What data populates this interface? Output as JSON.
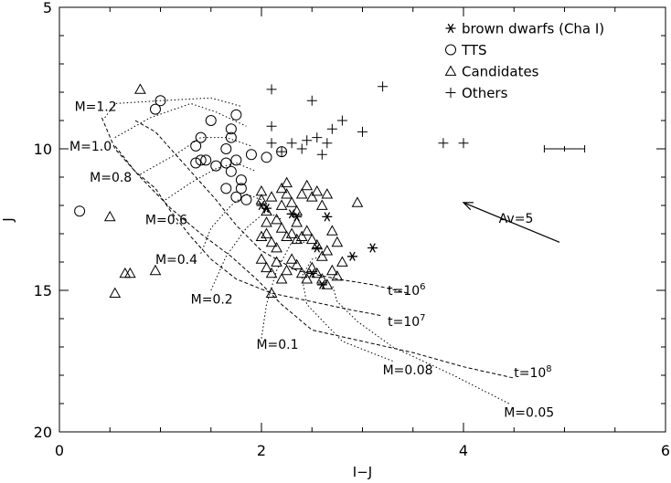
{
  "chart_data": {
    "type": "scatter",
    "xlabel": "I−J",
    "ylabel": "J",
    "xlim": [
      0,
      6
    ],
    "ylim": [
      20,
      5
    ],
    "y_inverted": true,
    "x_ticks": [
      "0",
      "2",
      "4",
      "6"
    ],
    "y_ticks": [
      "5",
      "10",
      "15",
      "20"
    ],
    "legend_position": "top-right",
    "series": [
      {
        "name": "brown dwarfs (Cha I)",
        "marker": "asterisk",
        "points": [
          [
            2.0,
            12.0
          ],
          [
            2.3,
            12.3
          ],
          [
            2.35,
            12.4
          ],
          [
            2.55,
            13.5
          ],
          [
            2.65,
            12.4
          ],
          [
            2.9,
            13.8
          ],
          [
            3.1,
            13.5
          ],
          [
            2.5,
            14.4
          ],
          [
            2.6,
            14.8
          ],
          [
            2.05,
            12.1
          ]
        ]
      },
      {
        "name": "TTS",
        "marker": "circle",
        "points": [
          [
            0.2,
            12.2
          ],
          [
            0.95,
            8.6
          ],
          [
            1.0,
            8.3
          ],
          [
            1.5,
            9.0
          ],
          [
            1.35,
            9.9
          ],
          [
            1.4,
            9.6
          ],
          [
            1.7,
            9.3
          ],
          [
            1.7,
            9.6
          ],
          [
            1.75,
            8.8
          ],
          [
            1.65,
            10.0
          ],
          [
            1.35,
            10.5
          ],
          [
            1.4,
            10.4
          ],
          [
            1.45,
            10.4
          ],
          [
            1.55,
            10.6
          ],
          [
            1.65,
            10.5
          ],
          [
            1.75,
            10.4
          ],
          [
            1.9,
            10.2
          ],
          [
            1.7,
            10.8
          ],
          [
            1.8,
            11.1
          ],
          [
            1.8,
            11.4
          ],
          [
            1.75,
            11.7
          ],
          [
            1.65,
            11.4
          ],
          [
            1.85,
            11.8
          ],
          [
            2.05,
            10.3
          ],
          [
            2.2,
            10.1
          ]
        ]
      },
      {
        "name": "Candidates",
        "marker": "triangle",
        "points": [
          [
            0.8,
            7.9
          ],
          [
            0.5,
            12.4
          ],
          [
            0.55,
            15.1
          ],
          [
            0.65,
            14.4
          ],
          [
            0.7,
            14.4
          ],
          [
            0.95,
            14.3
          ],
          [
            2.0,
            11.5
          ],
          [
            2.0,
            11.8
          ],
          [
            2.05,
            12.2
          ],
          [
            2.1,
            11.7
          ],
          [
            2.15,
            12.5
          ],
          [
            2.2,
            11.4
          ],
          [
            2.25,
            11.2
          ],
          [
            2.25,
            11.6
          ],
          [
            2.3,
            11.9
          ],
          [
            2.35,
            12.2
          ],
          [
            2.4,
            11.6
          ],
          [
            2.45,
            11.3
          ],
          [
            2.5,
            11.7
          ],
          [
            2.55,
            11.5
          ],
          [
            2.6,
            12.0
          ],
          [
            2.65,
            11.6
          ],
          [
            2.7,
            12.9
          ],
          [
            2.75,
            13.3
          ],
          [
            2.0,
            13.1
          ],
          [
            2.05,
            13.0
          ],
          [
            2.1,
            13.3
          ],
          [
            2.15,
            13.5
          ],
          [
            2.2,
            12.8
          ],
          [
            2.25,
            13.1
          ],
          [
            2.3,
            13.0
          ],
          [
            2.35,
            13.2
          ],
          [
            2.4,
            13.1
          ],
          [
            2.45,
            12.9
          ],
          [
            2.5,
            13.2
          ],
          [
            2.55,
            13.4
          ],
          [
            2.6,
            13.8
          ],
          [
            2.65,
            13.6
          ],
          [
            2.0,
            13.9
          ],
          [
            2.05,
            14.2
          ],
          [
            2.1,
            14.4
          ],
          [
            2.15,
            14.0
          ],
          [
            2.2,
            14.6
          ],
          [
            2.25,
            14.3
          ],
          [
            2.3,
            13.9
          ],
          [
            2.35,
            14.1
          ],
          [
            2.4,
            14.4
          ],
          [
            2.45,
            14.6
          ],
          [
            2.5,
            14.2
          ],
          [
            2.55,
            14.4
          ],
          [
            2.6,
            14.6
          ],
          [
            2.65,
            14.8
          ],
          [
            2.7,
            14.3
          ],
          [
            2.75,
            14.5
          ],
          [
            2.8,
            14.0
          ],
          [
            2.1,
            15.1
          ],
          [
            2.95,
            11.9
          ],
          [
            2.05,
            12.6
          ],
          [
            2.2,
            12.0
          ],
          [
            2.35,
            12.6
          ]
        ]
      },
      {
        "name": "Others",
        "marker": "plus",
        "points": [
          [
            2.1,
            7.9
          ],
          [
            3.2,
            7.8
          ],
          [
            2.5,
            8.3
          ],
          [
            2.1,
            9.2
          ],
          [
            2.7,
            9.3
          ],
          [
            2.8,
            9.0
          ],
          [
            3.0,
            9.4
          ],
          [
            2.1,
            9.8
          ],
          [
            2.3,
            9.8
          ],
          [
            2.45,
            9.7
          ],
          [
            2.55,
            9.6
          ],
          [
            2.65,
            9.8
          ],
          [
            2.4,
            10.0
          ],
          [
            2.2,
            10.1
          ],
          [
            2.6,
            10.2
          ],
          [
            3.8,
            9.8
          ],
          [
            4.0,
            9.8
          ]
        ]
      }
    ],
    "mass_labels": [
      {
        "text": "M=1.2",
        "x": 0.15,
        "y": 8.5
      },
      {
        "text": "M=1.0",
        "x": 0.1,
        "y": 9.9
      },
      {
        "text": "M=0.8",
        "x": 0.3,
        "y": 11.0
      },
      {
        "text": "M=0.6",
        "x": 0.85,
        "y": 12.5
      },
      {
        "text": "M=0.4",
        "x": 0.95,
        "y": 13.9
      },
      {
        "text": "M=0.2",
        "x": 1.3,
        "y": 15.3
      },
      {
        "text": "M=0.1",
        "x": 1.95,
        "y": 16.9
      },
      {
        "text": "M=0.08",
        "x": 3.2,
        "y": 17.8
      },
      {
        "text": "M=0.05",
        "x": 4.4,
        "y": 19.3
      }
    ],
    "isochrone_labels": [
      {
        "text": "t=10",
        "sup": "6",
        "x": 3.25,
        "y": 15.0
      },
      {
        "text": "t=10",
        "sup": "7",
        "x": 3.25,
        "y": 16.1
      },
      {
        "text": "t=10",
        "sup": "8",
        "x": 4.5,
        "y": 17.9
      }
    ],
    "isochrones": [
      {
        "t": "10^6",
        "points": [
          [
            0.75,
            9.0
          ],
          [
            0.95,
            9.4
          ],
          [
            1.1,
            10.0
          ],
          [
            1.3,
            10.8
          ],
          [
            1.55,
            11.8
          ],
          [
            1.75,
            12.7
          ],
          [
            2.0,
            13.6
          ],
          [
            2.35,
            14.3
          ],
          [
            2.75,
            14.6
          ],
          [
            3.1,
            14.8
          ],
          [
            3.45,
            15.1
          ]
        ]
      },
      {
        "t": "10^7",
        "points": [
          [
            0.55,
            9.9
          ],
          [
            0.75,
            10.8
          ],
          [
            0.95,
            11.4
          ],
          [
            1.1,
            12.2
          ],
          [
            1.3,
            13.1
          ],
          [
            1.5,
            13.9
          ],
          [
            1.75,
            14.6
          ],
          [
            2.1,
            15.1
          ],
          [
            2.5,
            15.4
          ],
          [
            2.9,
            15.7
          ],
          [
            3.2,
            15.9
          ]
        ]
      },
      {
        "t": "10^8",
        "points": [
          [
            0.42,
            8.9
          ],
          [
            0.55,
            10.0
          ],
          [
            0.8,
            11.0
          ],
          [
            1.1,
            12.1
          ],
          [
            1.4,
            13.0
          ],
          [
            1.7,
            13.8
          ],
          [
            1.95,
            14.6
          ],
          [
            2.2,
            15.5
          ],
          [
            2.5,
            16.4
          ],
          [
            3.0,
            16.8
          ],
          [
            3.5,
            17.2
          ],
          [
            4.0,
            17.7
          ],
          [
            4.5,
            18.1
          ]
        ]
      }
    ],
    "tracks": [
      {
        "mass": "1.2",
        "points": [
          [
            0.45,
            8.9
          ],
          [
            0.55,
            8.4
          ],
          [
            1.0,
            8.3
          ],
          [
            1.5,
            8.2
          ],
          [
            1.8,
            8.5
          ]
        ]
      },
      {
        "mass": "1.0",
        "points": [
          [
            0.55,
            9.6
          ],
          [
            0.9,
            8.9
          ],
          [
            1.3,
            8.4
          ],
          [
            1.55,
            8.7
          ],
          [
            1.85,
            9.2
          ]
        ]
      },
      {
        "mass": "0.8",
        "points": [
          [
            0.8,
            10.9
          ],
          [
            1.15,
            10.2
          ],
          [
            1.4,
            9.6
          ],
          [
            1.65,
            9.6
          ],
          [
            1.9,
            9.9
          ]
        ]
      },
      {
        "mass": "0.6",
        "points": [
          [
            1.05,
            11.8
          ],
          [
            1.3,
            11.2
          ],
          [
            1.55,
            10.7
          ],
          [
            1.75,
            10.5
          ],
          [
            1.95,
            10.8
          ]
        ]
      },
      {
        "mass": "0.4",
        "points": [
          [
            1.4,
            13.7
          ],
          [
            1.5,
            12.8
          ],
          [
            1.7,
            12.0
          ],
          [
            1.85,
            11.6
          ],
          [
            2.0,
            11.8
          ]
        ]
      },
      {
        "mass": "0.2",
        "points": [
          [
            1.5,
            15.0
          ],
          [
            1.65,
            13.8
          ],
          [
            1.85,
            12.8
          ],
          [
            2.05,
            12.2
          ],
          [
            2.2,
            12.5
          ]
        ]
      },
      {
        "mass": "0.1",
        "points": [
          [
            2.0,
            16.7
          ],
          [
            2.05,
            15.5
          ],
          [
            2.15,
            14.3
          ],
          [
            2.3,
            13.3
          ],
          [
            2.45,
            13.3
          ]
        ]
      },
      {
        "mass": "0.08",
        "points": [
          [
            3.3,
            17.5
          ],
          [
            2.8,
            16.8
          ],
          [
            2.45,
            15.5
          ],
          [
            2.4,
            14.5
          ],
          [
            2.5,
            13.9
          ],
          [
            2.6,
            13.8
          ]
        ]
      },
      {
        "mass": "0.05",
        "points": [
          [
            4.45,
            19.0
          ],
          [
            3.9,
            18.0
          ],
          [
            3.3,
            17.0
          ],
          [
            2.95,
            16.1
          ],
          [
            2.75,
            15.4
          ],
          [
            2.7,
            14.8
          ]
        ]
      }
    ],
    "extinction_vector": {
      "label": "Av=5",
      "from": [
        4.95,
        13.3
      ],
      "to": [
        4.0,
        11.9
      ]
    },
    "error_bar": {
      "x": 5.0,
      "y": 10.0,
      "xerr": 0.2
    }
  }
}
